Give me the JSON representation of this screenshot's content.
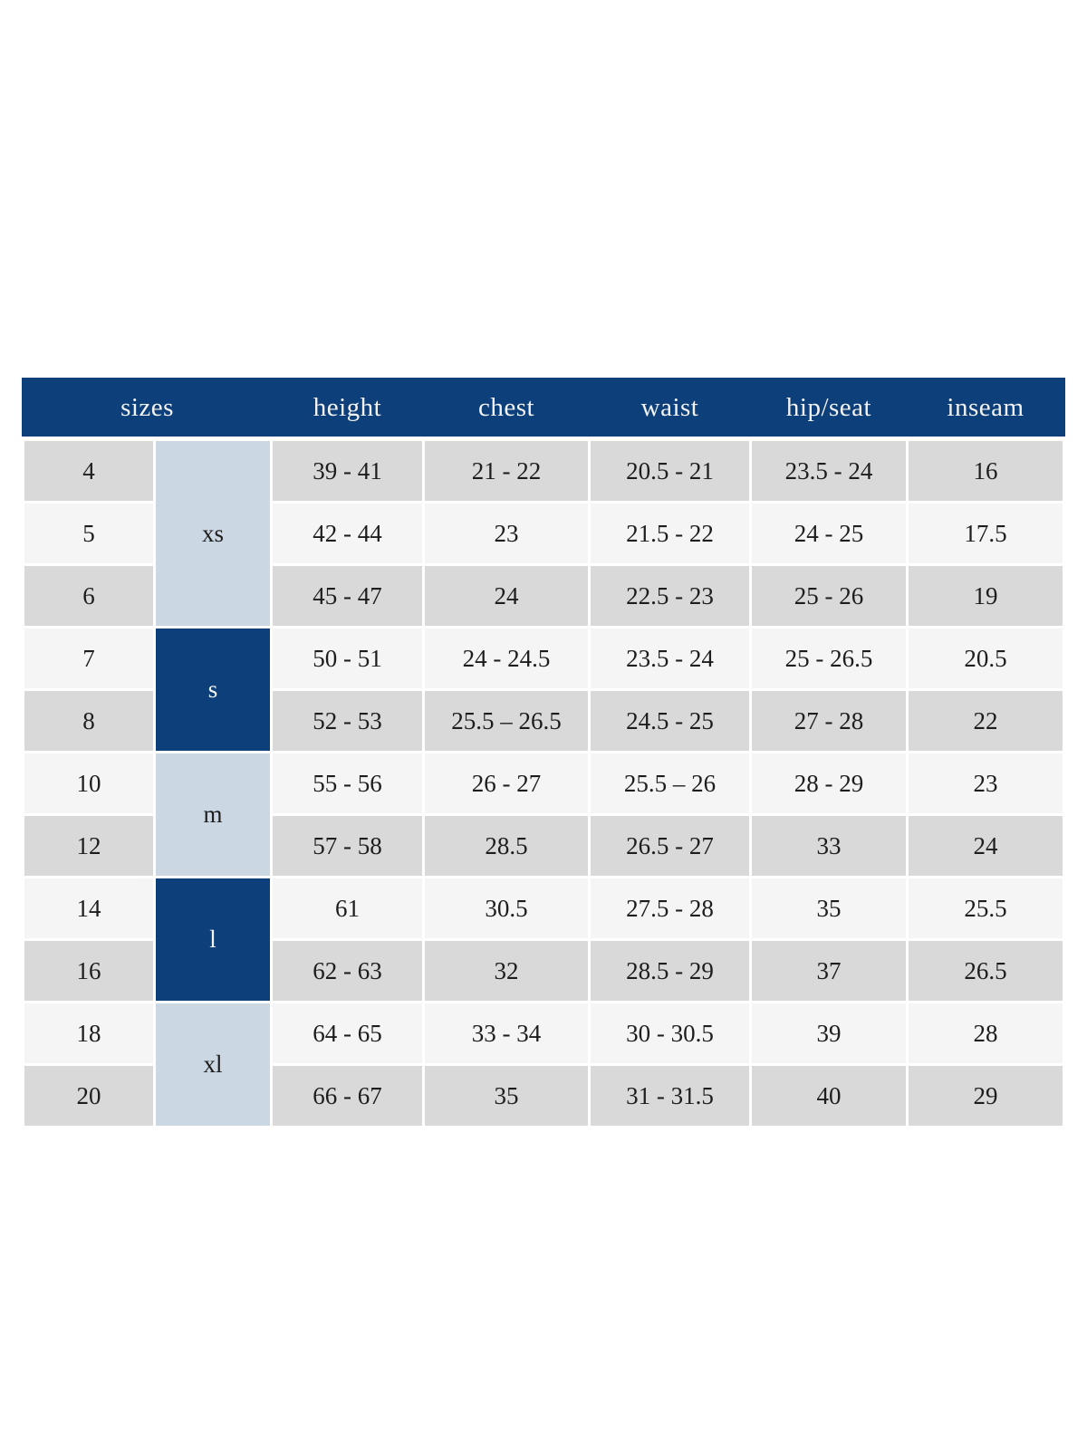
{
  "page": {
    "background_color": "#ffffff"
  },
  "colors": {
    "header_navy": "#0d3f7b",
    "group_dark_navy": "#0d3f7b",
    "group_light_blue": "#ccd7e4",
    "row_gray": "#d9d9d9",
    "row_light": "#f5f5f5",
    "text_dark": "#1d1d1d",
    "text_on_navy": "#f3f3f3"
  },
  "chart_data": {
    "type": "table",
    "header_labels": [
      "sizes",
      "height",
      "chest",
      "waist",
      "hip/seat",
      "inseam"
    ],
    "row_groups": [
      {
        "label": "xs",
        "tone": "light",
        "span": 3
      },
      {
        "label": "s",
        "tone": "dark",
        "span": 2
      },
      {
        "label": "m",
        "tone": "light",
        "span": 2
      },
      {
        "label": "l",
        "tone": "dark",
        "span": 2
      },
      {
        "label": "xl",
        "tone": "light",
        "span": 2
      }
    ],
    "rows": [
      {
        "size": "4",
        "height": "39 - 41",
        "chest": "21 - 22",
        "waist": "20.5 - 21",
        "hip_seat": "23.5 - 24",
        "inseam": "16"
      },
      {
        "size": "5",
        "height": "42 - 44",
        "chest": "23",
        "waist": "21.5 - 22",
        "hip_seat": "24 - 25",
        "inseam": "17.5"
      },
      {
        "size": "6",
        "height": "45 - 47",
        "chest": "24",
        "waist": "22.5 - 23",
        "hip_seat": "25 - 26",
        "inseam": "19"
      },
      {
        "size": "7",
        "height": "50 - 51",
        "chest": "24 - 24.5",
        "waist": "23.5 - 24",
        "hip_seat": "25 - 26.5",
        "inseam": "20.5"
      },
      {
        "size": "8",
        "height": "52 - 53",
        "chest": "25.5 – 26.5",
        "waist": "24.5 - 25",
        "hip_seat": "27 - 28",
        "inseam": "22"
      },
      {
        "size": "10",
        "height": "55 - 56",
        "chest": "26 - 27",
        "waist": "25.5 – 26",
        "hip_seat": "28 - 29",
        "inseam": "23"
      },
      {
        "size": "12",
        "height": "57 - 58",
        "chest": "28.5",
        "waist": "26.5 - 27",
        "hip_seat": "33",
        "inseam": "24"
      },
      {
        "size": "14",
        "height": "61",
        "chest": "30.5",
        "waist": "27.5 - 28",
        "hip_seat": "35",
        "inseam": "25.5"
      },
      {
        "size": "16",
        "height": "62 - 63",
        "chest": "32",
        "waist": "28.5 - 29",
        "hip_seat": "37",
        "inseam": "26.5"
      },
      {
        "size": "18",
        "height": "64 - 65",
        "chest": "33 - 34",
        "waist": "30 - 30.5",
        "hip_seat": "39",
        "inseam": "28"
      },
      {
        "size": "20",
        "height": "66 - 67",
        "chest": "35",
        "waist": "31 - 31.5",
        "hip_seat": "40",
        "inseam": "29"
      }
    ]
  }
}
